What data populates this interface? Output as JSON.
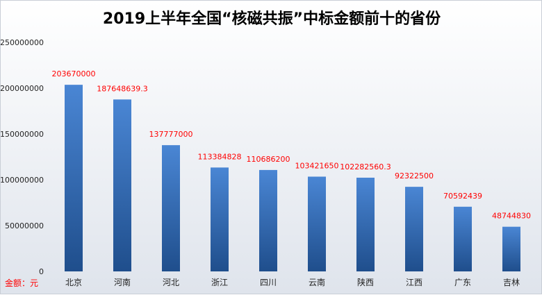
{
  "chart_data": {
    "type": "bar",
    "title": "2019上半年全国“核磁共振”中标金额前十的省份",
    "unit_label": "金额：元",
    "categories": [
      "北京",
      "河南",
      "河北",
      "浙江",
      "四川",
      "云南",
      "陕西",
      "江西",
      "广东",
      "吉林"
    ],
    "values": [
      203670000,
      187648639.3,
      137777000,
      113384828,
      110686200,
      103421650,
      102282560.3,
      92322500,
      70592439,
      48744830
    ],
    "data_labels": [
      "203670000",
      "187648639.3",
      "137777000",
      "113384828",
      "110686200",
      "103421650",
      "102282560.3",
      "92322500",
      "70592439",
      "48744830"
    ],
    "ylim": [
      0,
      250000000
    ],
    "yticks": [
      "0",
      "50000000",
      "100000000",
      "150000000",
      "200000000",
      "250000000"
    ],
    "grid": false,
    "colors": {
      "bar_top": "#4a86d4",
      "bar_bottom": "#1f4e8c",
      "data_label": "#ff0000",
      "unit_label": "#ff0000"
    }
  }
}
